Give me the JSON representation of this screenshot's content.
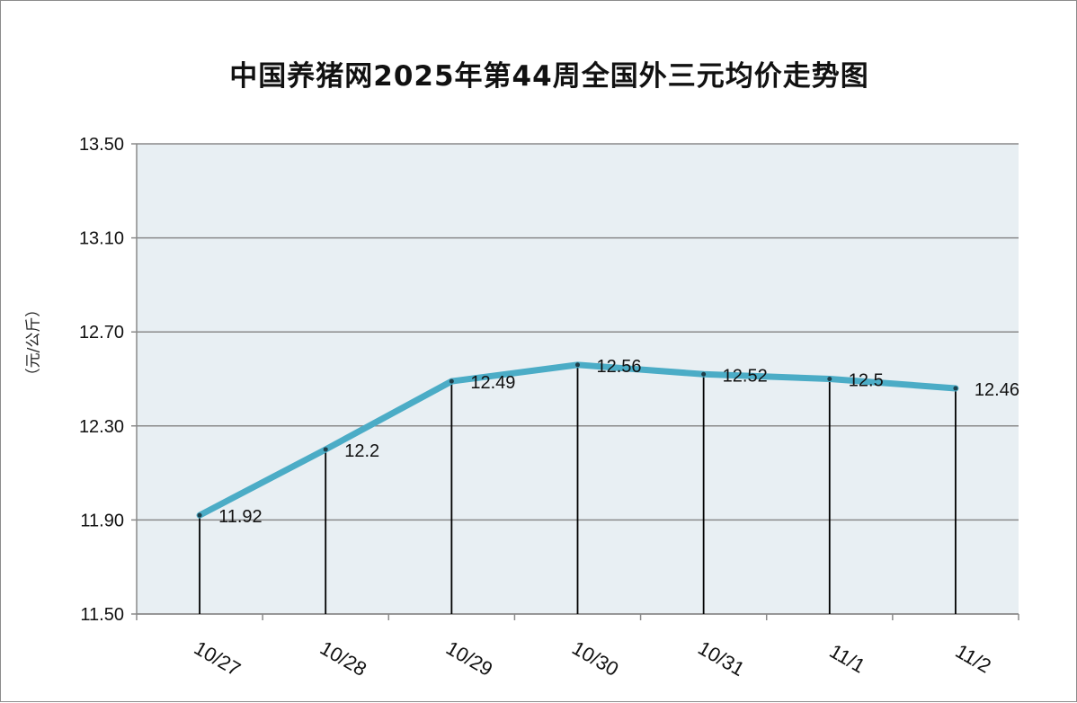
{
  "chart_data": {
    "type": "line",
    "title": "中国养猪网2025年第44周全国外三元均价走势图",
    "xlabel": "",
    "ylabel": "（元/公斤）",
    "categories": [
      "10/27",
      "10/28",
      "10/29",
      "10/30",
      "10/31",
      "11/1",
      "11/2"
    ],
    "series": [
      {
        "values": [
          11.92,
          12.2,
          12.49,
          12.56,
          12.52,
          12.5,
          12.46
        ],
        "data_labels": [
          "11.92",
          "12.2",
          "12.49",
          "12.56",
          "12.52",
          "12.5",
          "12.46"
        ],
        "color": "#4bacc6"
      }
    ],
    "ylim": [
      11.5,
      13.5
    ],
    "yticks": [
      "11.50",
      "11.90",
      "12.30",
      "12.70",
      "13.10",
      "13.50"
    ],
    "grid": true,
    "drop_lines": true,
    "legend": "none",
    "plot_background": "#e8eff3"
  }
}
